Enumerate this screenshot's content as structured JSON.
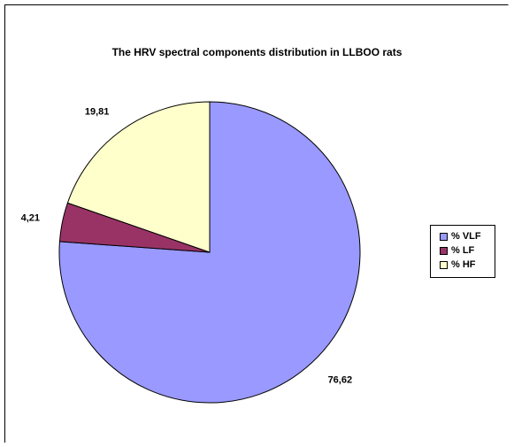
{
  "chart_data": {
    "type": "pie",
    "title": "The HRV spectral components distribution in LLBOO rats",
    "categories": [
      "% VLF",
      "% LF",
      "% HF"
    ],
    "values": [
      76.62,
      4.21,
      19.81
    ],
    "data_labels": [
      "76,62",
      "4,21",
      "19,81"
    ],
    "colors": [
      "#9999ff",
      "#993366",
      "#ffffcc"
    ],
    "legend_placement": "right"
  }
}
